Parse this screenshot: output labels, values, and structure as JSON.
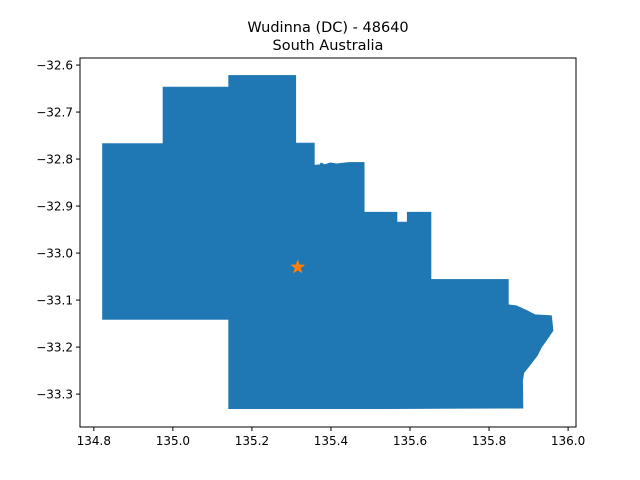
{
  "title": {
    "line1": "Wudinna (DC) - 48640",
    "line2": "South Australia"
  },
  "colors": {
    "region_fill": "#1f77b4",
    "marker": "#ff7f0e"
  },
  "chart_data": {
    "type": "map",
    "xlim": [
      134.765,
      136.02
    ],
    "ylim": [
      -33.37,
      -32.585
    ],
    "x_ticks": [
      134.8,
      135.0,
      135.2,
      135.4,
      135.6,
      135.8,
      136.0
    ],
    "x_tick_labels": [
      "134.8",
      "135.0",
      "135.2",
      "135.4",
      "135.6",
      "135.8",
      "136.0"
    ],
    "y_ticks": [
      -32.6,
      -32.7,
      -32.8,
      -32.9,
      -33.0,
      -33.1,
      -33.2,
      -33.3
    ],
    "y_tick_labels": [
      "−32.6",
      "−32.7",
      "−32.8",
      "−32.9",
      "−33.0",
      "−33.1",
      "−33.2",
      "−33.3"
    ],
    "region_outline": [
      [
        135.141,
        -32.622
      ],
      [
        135.311,
        -32.622
      ],
      [
        135.311,
        -32.766
      ],
      [
        135.358,
        -32.766
      ],
      [
        135.358,
        -32.813
      ],
      [
        135.372,
        -32.812
      ],
      [
        135.375,
        -32.808
      ],
      [
        135.384,
        -32.812
      ],
      [
        135.398,
        -32.808
      ],
      [
        135.414,
        -32.81
      ],
      [
        135.446,
        -32.807
      ],
      [
        135.484,
        -32.807
      ],
      [
        135.484,
        -32.913
      ],
      [
        135.567,
        -32.913
      ],
      [
        135.567,
        -32.934
      ],
      [
        135.593,
        -32.934
      ],
      [
        135.593,
        -32.913
      ],
      [
        135.653,
        -32.913
      ],
      [
        135.653,
        -33.056
      ],
      [
        135.849,
        -33.056
      ],
      [
        135.849,
        -33.11
      ],
      [
        135.869,
        -33.112
      ],
      [
        135.895,
        -33.122
      ],
      [
        135.916,
        -33.131
      ],
      [
        135.958,
        -33.133
      ],
      [
        135.962,
        -33.165
      ],
      [
        135.95,
        -33.18
      ],
      [
        135.933,
        -33.2
      ],
      [
        135.922,
        -33.218
      ],
      [
        135.906,
        -33.236
      ],
      [
        135.888,
        -33.255
      ],
      [
        135.885,
        -33.272
      ],
      [
        135.886,
        -33.33
      ],
      [
        135.5,
        -33.331
      ],
      [
        135.141,
        -33.331
      ],
      [
        135.141,
        -33.141
      ],
      [
        134.822,
        -33.141
      ],
      [
        134.822,
        -32.767
      ],
      [
        134.975,
        -32.767
      ],
      [
        134.975,
        -32.647
      ],
      [
        135.141,
        -32.647
      ]
    ],
    "marker": {
      "lon": 135.316,
      "lat": -33.03,
      "symbol": "star"
    }
  }
}
